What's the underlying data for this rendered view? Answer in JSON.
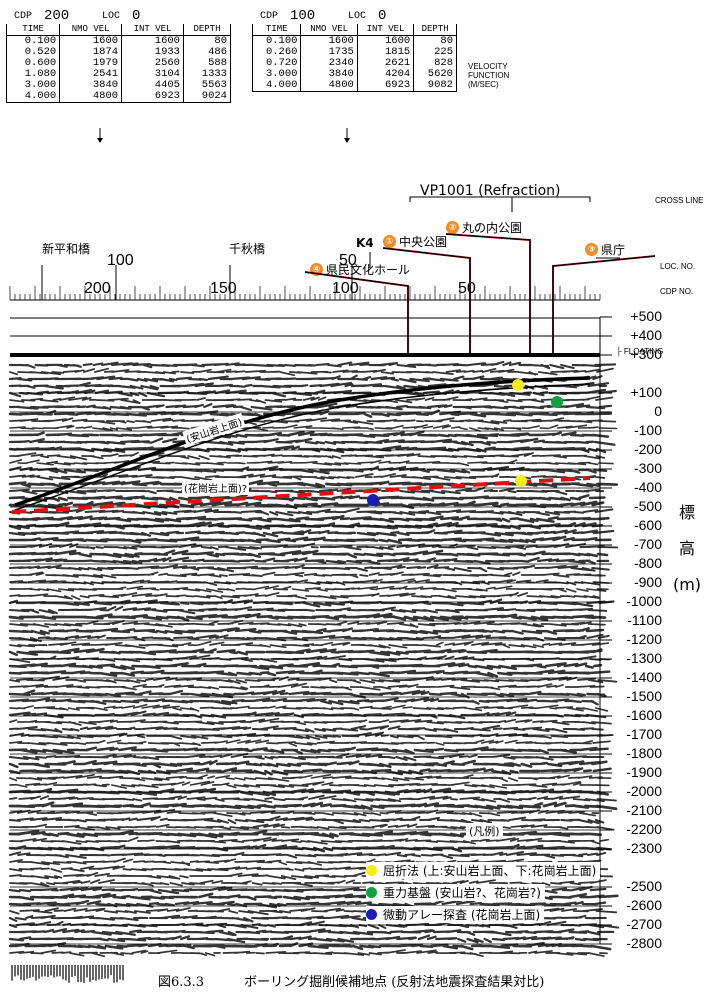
{
  "tables": [
    {
      "cdp_label": "CDP",
      "cdp_value": "200",
      "loc_label": "LOC",
      "loc_value": "0",
      "columns": [
        "TIME",
        "NMO VEL",
        "INT VEL",
        "DEPTH"
      ],
      "rows": [
        [
          "0.100",
          "1600",
          "1600",
          "80"
        ],
        [
          "0.520",
          "1874",
          "1933",
          "486"
        ],
        [
          "0.600",
          "1979",
          "2560",
          "588"
        ],
        [
          "1.080",
          "2541",
          "3104",
          "1333"
        ],
        [
          "3.000",
          "3840",
          "4405",
          "5563"
        ],
        [
          "4.000",
          "4800",
          "6923",
          "9024"
        ]
      ]
    },
    {
      "cdp_label": "CDP",
      "cdp_value": "100",
      "loc_label": "LOC",
      "loc_value": "0",
      "columns": [
        "TIME",
        "NMO VEL",
        "INT VEL",
        "DEPTH"
      ],
      "rows": [
        [
          "0.100",
          "1600",
          "1600",
          "80"
        ],
        [
          "0.260",
          "1735",
          "1815",
          "225"
        ],
        [
          "0.720",
          "2340",
          "2621",
          "828"
        ],
        [
          "3.000",
          "3840",
          "4204",
          "5620"
        ],
        [
          "4.000",
          "4800",
          "6923",
          "9082"
        ]
      ]
    }
  ],
  "velocity_function_label": [
    "VELOCITY",
    "FUNCTION",
    "(M/SEC)"
  ],
  "vp_label": "VP1001 (Refraction)",
  "side_labels": {
    "cross_line": "CROSS LINE",
    "loc_no": "LOC. NO.",
    "cdp_no": "CDP NO.",
    "floating": "FLOATING"
  },
  "k4": "K4",
  "locations": [
    {
      "num": "①",
      "name": "中央公園"
    },
    {
      "num": "②",
      "name": "丸の内公園"
    },
    {
      "num": "③",
      "name": "県庁"
    },
    {
      "num": "④",
      "name": "県民文化ホール"
    }
  ],
  "bridges": [
    "新平和橋",
    "千秋橋"
  ],
  "loc_ticks": [
    "100",
    "50"
  ],
  "cdp_ticks": [
    "200",
    "150",
    "100",
    "50"
  ],
  "elevation_ticks": [
    "+500",
    "+400",
    "+300",
    "+100",
    "0",
    "-100",
    "-200",
    "-300",
    "-400",
    "-500",
    "-600",
    "-700",
    "-800",
    "-900",
    "-1000",
    "-1100",
    "-1200",
    "-1300",
    "-1400",
    "-1500",
    "-1600",
    "-1700",
    "-1800",
    "-1900",
    "-2000",
    "-2100",
    "-2200",
    "-2300",
    "-2500",
    "-2600",
    "-2700",
    "-2800"
  ],
  "axis_title": [
    "標",
    "高",
    "(m)"
  ],
  "horizon_labels": {
    "andesite": "(安山岩上面)",
    "granite": "(花崗岩上面)?"
  },
  "legend": {
    "title": "(凡例)",
    "items": [
      {
        "color": "#f5ec1a",
        "text": "屈折法 (上:安山岩上面、下:花崗岩上面)"
      },
      {
        "color": "#13a040",
        "text": "重力基盤 (安山岩?、花崗岩?)"
      },
      {
        "color": "#1a1ab8",
        "text": "微動アレー探査 (花崗岩上面)"
      }
    ]
  },
  "caption": {
    "number": "図6.3.3",
    "text": "ボーリング掘削候補地点 (反射法地震探査結果対比)"
  },
  "colors": {
    "andesite_line": "#000000",
    "granite_line": "#e01010",
    "badge": "#f08a24"
  }
}
